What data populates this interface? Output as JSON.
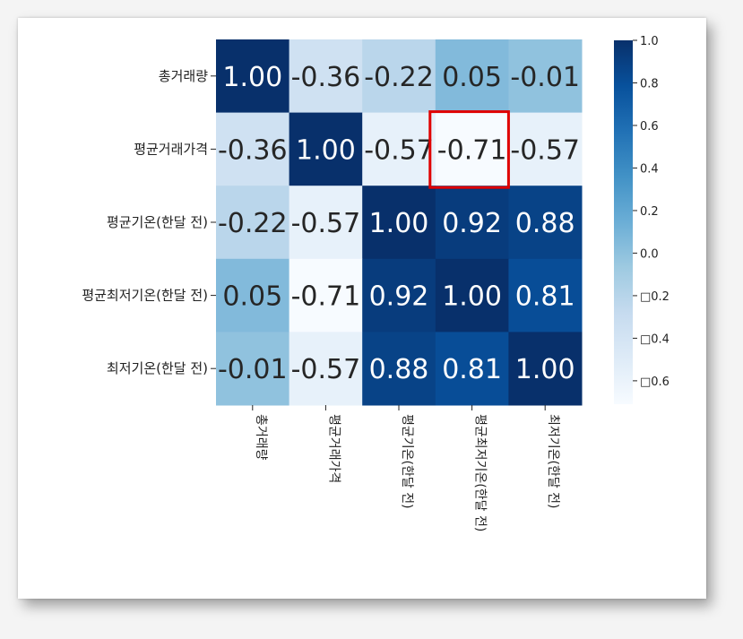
{
  "chart_data": {
    "type": "heatmap",
    "row_labels": [
      "총거래량",
      "평균거래가격",
      "평균기온(한달 전)",
      "평균최저기온(한달 전)",
      "최저기온(한달 전)"
    ],
    "col_labels": [
      "총거래량",
      "평균거래가격",
      "평균기온(한달 전)",
      "평균최저기온(한달 전)",
      "최저기온(한달 전)"
    ],
    "values": [
      [
        1.0,
        -0.36,
        -0.22,
        0.05,
        -0.01
      ],
      [
        -0.36,
        1.0,
        -0.57,
        -0.71,
        -0.57
      ],
      [
        -0.22,
        -0.57,
        1.0,
        0.92,
        0.88
      ],
      [
        0.05,
        -0.71,
        0.92,
        1.0,
        0.81
      ],
      [
        -0.01,
        -0.57,
        0.88,
        0.81,
        1.0
      ]
    ],
    "annotations": [
      [
        "1.00",
        "-0.36",
        "-0.22",
        "0.05",
        "-0.01"
      ],
      [
        "-0.36",
        "1.00",
        "-0.57",
        "-0.71",
        "-0.57"
      ],
      [
        "-0.22",
        "-0.57",
        "1.00",
        "0.92",
        "0.88"
      ],
      [
        "0.05",
        "-0.71",
        "0.92",
        "1.00",
        "0.81"
      ],
      [
        "-0.01",
        "-0.57",
        "0.88",
        "0.81",
        "1.00"
      ]
    ],
    "colormap": "Blues",
    "vmin": -0.71,
    "vmax": 1.0,
    "colorbar_ticks": [
      1.0,
      0.8,
      0.6,
      0.4,
      0.2,
      0.0,
      -0.2,
      -0.4,
      -0.6
    ],
    "colorbar_tick_labels": [
      "1.0",
      "0.8",
      "0.6",
      "0.4",
      "0.2",
      "0.0",
      "□0.2",
      "□0.4",
      "□0.6"
    ],
    "highlight": {
      "row": 1,
      "col": 3,
      "color": "#e00000"
    }
  }
}
